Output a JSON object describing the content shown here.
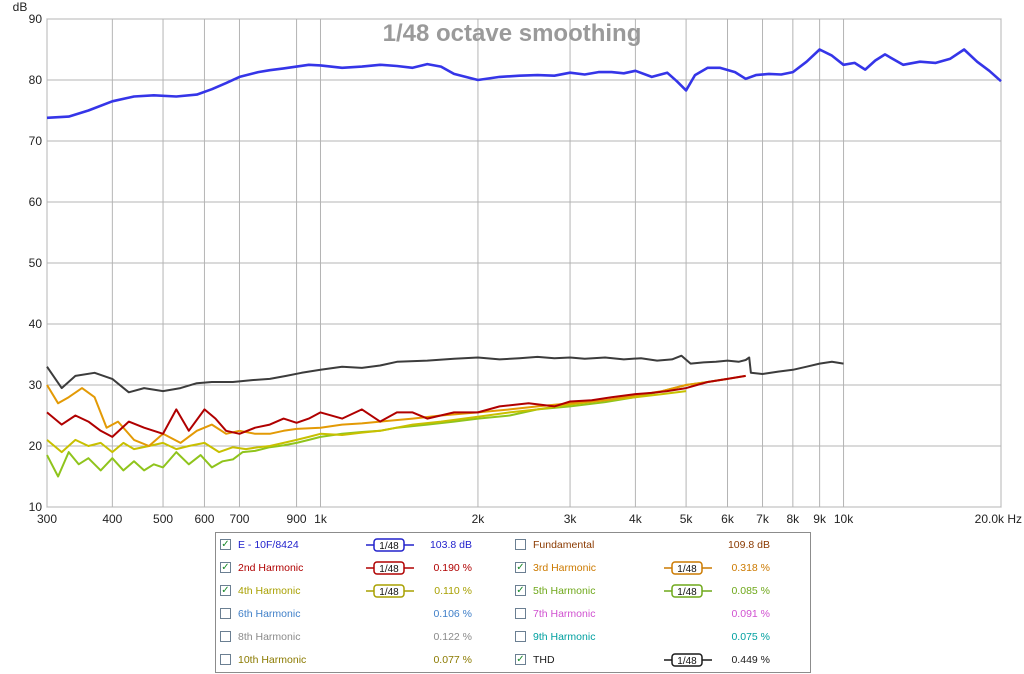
{
  "chart_data": {
    "type": "line",
    "title": "1/48 octave smoothing",
    "y_unit": "dB",
    "x_unit": "Hz",
    "xscale": "log",
    "xlim": [
      300,
      20000
    ],
    "ylim": [
      10,
      90
    ],
    "y_ticks": [
      "10",
      "20",
      "30",
      "40",
      "50",
      "60",
      "70",
      "80",
      "90"
    ],
    "x_ticks": [
      {
        "v": 300,
        "label": "300"
      },
      {
        "v": 400,
        "label": "400"
      },
      {
        "v": 500,
        "label": "500"
      },
      {
        "v": 600,
        "label": "600"
      },
      {
        "v": 700,
        "label": "700"
      },
      {
        "v": 900,
        "label": "900"
      },
      {
        "v": 1000,
        "label": "1k"
      },
      {
        "v": 2000,
        "label": "2k"
      },
      {
        "v": 3000,
        "label": "3k"
      },
      {
        "v": 4000,
        "label": "4k"
      },
      {
        "v": 5000,
        "label": "5k"
      },
      {
        "v": 6000,
        "label": "6k"
      },
      {
        "v": 7000,
        "label": "7k"
      },
      {
        "v": 8000,
        "label": "8k"
      },
      {
        "v": 9000,
        "label": "9k"
      },
      {
        "v": 10000,
        "label": "10k"
      },
      {
        "v": 20000,
        "label": "20.0k Hz"
      }
    ],
    "grid": true,
    "series": [
      {
        "name": "E - 10F/8424",
        "color": "#3535e8",
        "width": 2.6,
        "x": [
          300,
          330,
          360,
          400,
          440,
          480,
          530,
          580,
          620,
          660,
          700,
          760,
          800,
          850,
          900,
          950,
          1000,
          1100,
          1200,
          1300,
          1400,
          1500,
          1600,
          1700,
          1800,
          2000,
          2200,
          2400,
          2600,
          2800,
          3000,
          3200,
          3400,
          3600,
          3800,
          4000,
          4300,
          4600,
          4800,
          5000,
          5200,
          5500,
          5800,
          6200,
          6500,
          6800,
          7200,
          7600,
          8000,
          8500,
          9000,
          9500,
          10000,
          10500,
          11000,
          11500,
          12000,
          13000,
          14000,
          15000,
          16000,
          17000,
          18000,
          19000,
          20000
        ],
        "y": [
          73.8,
          74,
          75,
          76.5,
          77.3,
          77.5,
          77.3,
          77.6,
          78.5,
          79.5,
          80.5,
          81.3,
          81.6,
          81.9,
          82.2,
          82.5,
          82.4,
          82,
          82.2,
          82.5,
          82.3,
          82,
          82.6,
          82.2,
          81,
          80,
          80.5,
          80.7,
          80.8,
          80.7,
          81.2,
          80.9,
          81.3,
          81.3,
          81.1,
          81.5,
          80.5,
          81.2,
          79.8,
          78.3,
          80.8,
          82,
          82,
          81.3,
          80.2,
          80.8,
          81,
          80.9,
          81.3,
          83,
          85,
          84,
          82.5,
          82.8,
          81.7,
          83.2,
          84.2,
          82.5,
          83,
          82.8,
          83.5,
          85,
          83,
          81.5,
          79.8
        ]
      },
      {
        "name": "THD",
        "color": "#3c3c3c",
        "width": 2,
        "x": [
          300,
          320,
          340,
          370,
          400,
          430,
          460,
          500,
          540,
          580,
          620,
          680,
          740,
          800,
          860,
          920,
          1000,
          1100,
          1200,
          1300,
          1400,
          1600,
          1800,
          2000,
          2200,
          2400,
          2600,
          2800,
          3000,
          3200,
          3500,
          3800,
          4100,
          4400,
          4700,
          4900,
          5100,
          5400,
          5700,
          6000,
          6300,
          6500,
          6600,
          6650,
          7000,
          7500,
          8000,
          8500,
          9000,
          9500,
          10000
        ],
        "y": [
          33,
          29.5,
          31.5,
          32,
          31,
          28.8,
          29.5,
          29,
          29.5,
          30.3,
          30.5,
          30.5,
          30.8,
          31,
          31.5,
          32,
          32.5,
          33,
          32.8,
          33.2,
          33.8,
          34,
          34.3,
          34.5,
          34.2,
          34.4,
          34.6,
          34.4,
          34.5,
          34.3,
          34.5,
          34.2,
          34.4,
          34,
          34.2,
          34.8,
          33.5,
          33.7,
          33.8,
          34,
          33.8,
          34.1,
          34.5,
          32,
          31.8,
          32.2,
          32.5,
          33,
          33.5,
          33.8,
          33.5
        ]
      },
      {
        "name": "2nd Harmonic",
        "color": "#b00000",
        "width": 2,
        "x": [
          300,
          320,
          340,
          360,
          380,
          400,
          430,
          460,
          500,
          530,
          560,
          600,
          630,
          660,
          700,
          750,
          800,
          850,
          900,
          950,
          1000,
          1100,
          1200,
          1300,
          1400,
          1500,
          1600,
          1800,
          2000,
          2200,
          2500,
          2800,
          3000,
          3300,
          3600,
          4000,
          4300,
          4600,
          5000,
          5500,
          6000,
          6500
        ],
        "y": [
          25.5,
          23.5,
          25,
          24,
          22.5,
          21.5,
          24,
          23,
          22,
          26,
          22.5,
          26,
          24.5,
          22.5,
          22,
          23,
          23.5,
          24.5,
          23.8,
          24.5,
          25.5,
          24.5,
          26,
          24,
          25.5,
          25.5,
          24.5,
          25.5,
          25.5,
          26.5,
          27,
          26.5,
          27.3,
          27.5,
          28,
          28.5,
          28.7,
          29,
          29.5,
          30.5,
          31,
          31.5
        ]
      },
      {
        "name": "3rd Harmonic",
        "color": "#e39a05",
        "width": 2,
        "x": [
          300,
          315,
          330,
          350,
          370,
          390,
          410,
          440,
          470,
          500,
          540,
          580,
          620,
          660,
          700,
          750,
          800,
          850,
          900,
          1000,
          1100,
          1200,
          1300,
          1500,
          1700,
          2000,
          2300,
          2600,
          3000,
          3500,
          4000,
          4500,
          5000,
          5500,
          6000,
          6500
        ],
        "y": [
          30,
          27,
          28,
          29.5,
          28,
          23,
          24,
          21,
          20,
          22,
          20.5,
          22.5,
          23.5,
          22,
          22.5,
          22,
          22,
          22.5,
          22.8,
          23,
          23.5,
          23.7,
          24,
          24.5,
          25,
          25.5,
          26,
          26.5,
          27,
          27.5,
          28.3,
          29,
          30,
          30.5,
          31,
          31.5
        ]
      },
      {
        "name": "4th Harmonic",
        "color": "#c8c000",
        "width": 2,
        "x": [
          300,
          320,
          340,
          360,
          380,
          400,
          420,
          440,
          470,
          500,
          530,
          560,
          600,
          640,
          680,
          720,
          760,
          800,
          850,
          900,
          950,
          1000,
          1100,
          1200,
          1300,
          1500,
          1700,
          2000,
          2300,
          2600,
          3000,
          3500,
          4000,
          4500,
          5000
        ],
        "y": [
          21,
          19,
          21,
          20,
          20.5,
          19,
          20.5,
          19.5,
          20,
          20.5,
          19.5,
          20,
          20.5,
          19,
          19.8,
          19.5,
          19.8,
          20,
          20.5,
          21,
          21.5,
          22,
          21.8,
          22.2,
          22.5,
          23.5,
          24,
          24.8,
          25.5,
          26,
          26.8,
          27.5,
          28,
          28.5,
          29
        ]
      },
      {
        "name": "5th Harmonic",
        "color": "#8fc41c",
        "width": 2,
        "x": [
          300,
          315,
          330,
          345,
          360,
          380,
          400,
          420,
          440,
          460,
          480,
          500,
          530,
          560,
          590,
          620,
          650,
          680,
          710,
          750,
          800,
          850,
          900,
          950,
          1000,
          1100,
          1200,
          1300,
          1400,
          1600,
          1800,
          2000,
          2300,
          2600,
          3000,
          3500,
          4000,
          4500,
          5000,
          5500,
          6000
        ],
        "y": [
          18.5,
          15,
          19,
          17,
          18,
          16,
          18,
          16,
          17.5,
          16,
          17,
          16.5,
          19,
          17,
          18.5,
          16.5,
          17.5,
          17.8,
          19,
          19.2,
          19.8,
          20.1,
          20.5,
          21,
          21.5,
          22,
          22.3,
          22.5,
          23,
          23.5,
          24,
          24.5,
          25,
          26,
          26.5,
          27.2,
          28,
          29,
          30,
          30.5,
          31
        ]
      }
    ]
  },
  "legend": {
    "rows": [
      {
        "left": {
          "name": "E - 10F/8424",
          "checked": true,
          "color": "#2222cc",
          "smooth": "1/48",
          "value": "103.8 dB",
          "value_color": "#2222cc"
        },
        "right": {
          "name": "Fundamental",
          "checked": false,
          "color": "#8b3a00",
          "smooth": "",
          "value": "109.8 dB",
          "value_color": "#8b3a00"
        }
      },
      {
        "left": {
          "name": "2nd Harmonic",
          "checked": true,
          "color": "#b00000",
          "smooth": "1/48",
          "value": "0.190 %",
          "value_color": "#b00000"
        },
        "right": {
          "name": "3rd Harmonic",
          "checked": true,
          "color": "#cc7a00",
          "smooth": "1/48",
          "value": "0.318 %",
          "value_color": "#cc7a00"
        }
      },
      {
        "left": {
          "name": "4th Harmonic",
          "checked": true,
          "color": "#a8a000",
          "smooth": "1/48",
          "value": "0.110 %",
          "value_color": "#a8a000"
        },
        "right": {
          "name": "5th Harmonic",
          "checked": true,
          "color": "#6fa81a",
          "smooth": "1/48",
          "value": "0.085 %",
          "value_color": "#6fa81a"
        }
      },
      {
        "left": {
          "name": "6th Harmonic",
          "checked": false,
          "color": "#3f7fc8",
          "smooth": "",
          "value": "0.106 %",
          "value_color": "#3f7fc8"
        },
        "right": {
          "name": "7th Harmonic",
          "checked": false,
          "color": "#d050d0",
          "smooth": "",
          "value": "0.091 %",
          "value_color": "#d050d0"
        }
      },
      {
        "left": {
          "name": "8th Harmonic",
          "checked": false,
          "color": "#8a8a8a",
          "smooth": "",
          "value": "0.122 %",
          "value_color": "#8a8a8a"
        },
        "right": {
          "name": "9th Harmonic",
          "checked": false,
          "color": "#00a0a0",
          "smooth": "",
          "value": "0.075 %",
          "value_color": "#00a0a0"
        }
      },
      {
        "left": {
          "name": "10th Harmonic",
          "checked": false,
          "color": "#8b7a00",
          "smooth": "",
          "value": "0.077 %",
          "value_color": "#8b7a00"
        },
        "right": {
          "name": "THD",
          "checked": true,
          "color": "#1a1a1a",
          "smooth": "1/48",
          "value": "0.449 %",
          "value_color": "#1a1a1a"
        }
      }
    ]
  }
}
